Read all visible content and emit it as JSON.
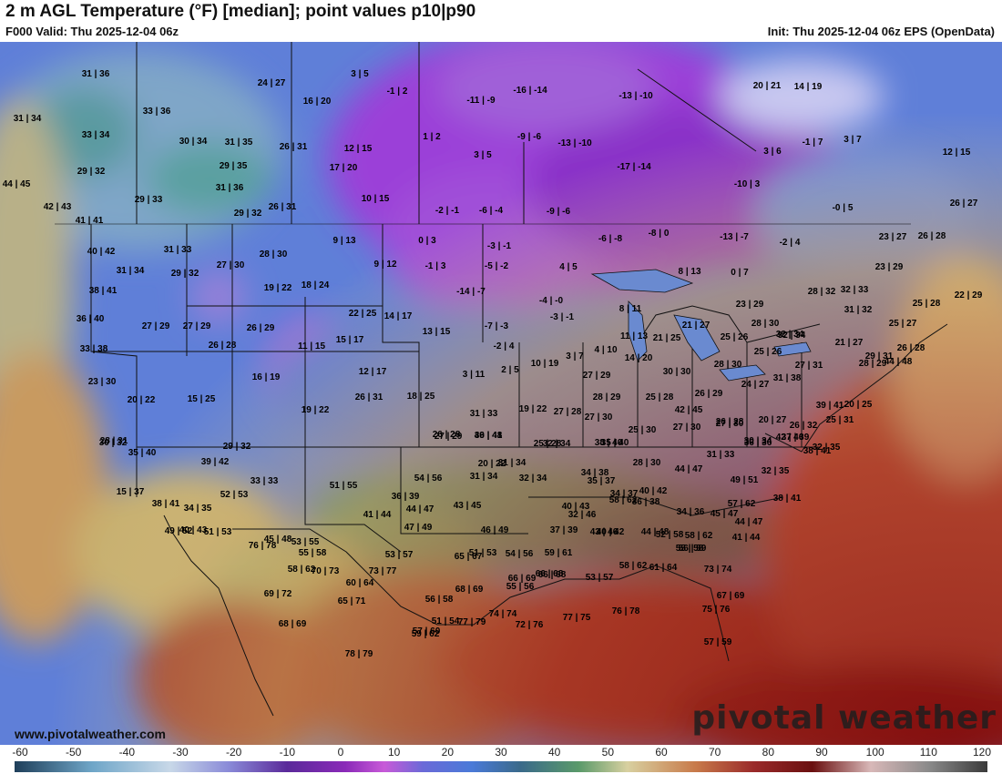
{
  "header": {
    "title": "2 m AGL Temperature (°F) [median]; point values p10|p90",
    "valid": "F000 Valid: Thu 2025-12-04 06z",
    "init": "Init: Thu 2025-12-04 06z EPS (OpenData)"
  },
  "footer": {
    "website": "www.pivotalweather.com",
    "logo": "pivotal weather"
  },
  "colorbar": {
    "ticks": [
      "-60",
      "-50",
      "-40",
      "-30",
      "-20",
      "-10",
      "0",
      "10",
      "20",
      "30",
      "40",
      "50",
      "60",
      "70",
      "80",
      "90",
      "100",
      "110",
      "120"
    ]
  },
  "point_values": [
    "31|36",
    "24|27",
    "3|5",
    "33|36",
    "31|34",
    "33|34",
    "-1|2",
    "-11|-9",
    "-16|-14",
    "-13|-10",
    "20|21",
    "14|19",
    "30|34",
    "31|35",
    "26|31",
    "12|15",
    "16|20",
    "1|2",
    "-9|-6",
    "-13|-10",
    "3|6",
    "-1|7",
    "3|7",
    "12|15",
    "29|32",
    "29|35",
    "17|20",
    "3|5",
    "-17|-14",
    "44|45",
    "31|36",
    "10|15",
    "-10|3",
    "-0|5",
    "29|33",
    "42|43",
    "26|31",
    "29|32",
    "-2|-1",
    "-6|-4",
    "-9|-6",
    "26|27",
    "41|41",
    "9|13",
    "0|3",
    "-6|-8",
    "-8|0",
    "-13|-7",
    "-2|4",
    "23|27",
    "26|28",
    "40|42",
    "31|33",
    "28|30",
    "-3|-1",
    "27|30",
    "9|12",
    "-1|3",
    "-5|-2",
    "4|5",
    "8|13",
    "0|7",
    "23|29",
    "31|34",
    "29|32",
    "19|22",
    "18|24",
    "-14|-7",
    "28|32",
    "32|33",
    "22|29",
    "38|41",
    "-4|-0",
    "23|29",
    "25|28",
    "22|25",
    "14|17",
    "8|11",
    "31|32",
    "36|40",
    "27|29",
    "27|29",
    "26|29",
    "-7|-3",
    "-3|-1",
    "21|27",
    "28|30",
    "25|27",
    "32|34",
    "11|15",
    "15|17",
    "13|15",
    "-2|4",
    "11|13",
    "21|25",
    "32|34",
    "21|27",
    "26|28",
    "33|38",
    "26|28",
    "3|7",
    "4|10",
    "14|20",
    "25|26",
    "25|26",
    "29|31",
    "44|48",
    "23|30",
    "16|19",
    "12|17",
    "3|11",
    "2|5",
    "10|19",
    "27|29",
    "30|30",
    "28|30",
    "27|31",
    "28|29",
    "20|22",
    "15|25",
    "26|31",
    "18|25",
    "28|29",
    "25|28",
    "26|29",
    "24|27",
    "31|38",
    "39|41",
    "20|25",
    "19|22",
    "19|22",
    "27|28",
    "31|33",
    "42|45",
    "26|28",
    "20|27",
    "26|32",
    "25|31",
    "28|31",
    "26|28",
    "46|48",
    "27|30",
    "25|30",
    "27|30",
    "27|30",
    "30|34",
    "37|39",
    "30|32",
    "27|29",
    "39|41",
    "25|28",
    "35|40",
    "28|30",
    "36|36",
    "42|46",
    "32|35",
    "29|32",
    "32|34",
    "38|40",
    "20|22",
    "31|33",
    "31|34",
    "38|41",
    "39|42",
    "34|38",
    "44|47",
    "49|51",
    "32|35",
    "35|40",
    "33|33",
    "51|55",
    "54|56",
    "31|34",
    "32|34",
    "35|37",
    "15|37",
    "52|53",
    "34|37",
    "40|42",
    "38|41",
    "34|35",
    "36|39",
    "58|62",
    "57|62",
    "38|41",
    "40|43",
    "44|47",
    "43|45",
    "40|43",
    "36|38",
    "34|36",
    "45|47",
    "41|44",
    "32|46",
    "40|42",
    "44|48",
    "49|52",
    "51|53",
    "47|49",
    "46|49",
    "37|39",
    "43|46",
    "52|58",
    "58|62",
    "44|47",
    "41|44",
    "45|48",
    "55|58",
    "53|57",
    "51|53",
    "54|56",
    "59|61",
    "56|59",
    "55|58",
    "53|55",
    "70|73",
    "73|77",
    "76|78",
    "60|64",
    "58|62",
    "65|67",
    "55|56",
    "66|68",
    "53|57",
    "58|62",
    "61|64",
    "73|74",
    "69|72",
    "65|71",
    "56|58",
    "68|69",
    "66|69",
    "66|68",
    "67|69",
    "76|78",
    "77|75",
    "72|76",
    "51|54",
    "57|60",
    "77|79",
    "74|74",
    "75|76",
    "57|59",
    "68|69",
    "78|79",
    "59|62"
  ]
}
